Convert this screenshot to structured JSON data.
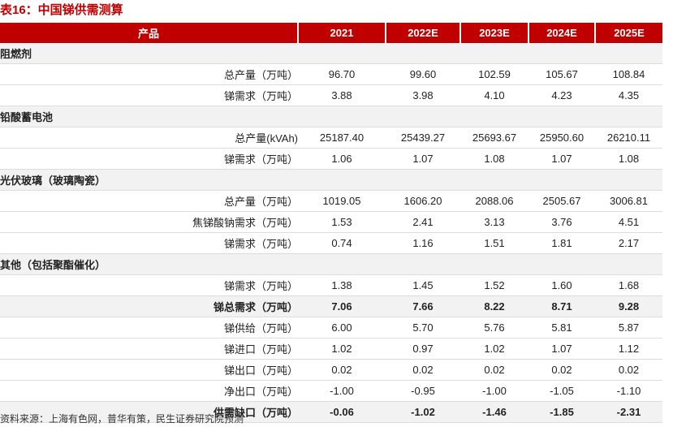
{
  "title": "表16：中国锑供需测算",
  "source": "资料来源：上海有色网，普华有策，民生证券研究院预测",
  "header": {
    "product": "产品",
    "years": [
      "2021",
      "2022E",
      "2023E",
      "2024E",
      "2025E"
    ]
  },
  "rows": [
    {
      "type": "section",
      "label": "阻燃剂",
      "values": []
    },
    {
      "type": "sub",
      "label": "总产量（万吨）",
      "values": [
        "96.70",
        "99.60",
        "102.59",
        "105.67",
        "108.84"
      ]
    },
    {
      "type": "sub",
      "label": "锑需求（万吨）",
      "values": [
        "3.88",
        "3.98",
        "4.10",
        "4.23",
        "4.35"
      ]
    },
    {
      "type": "section",
      "label": "铅酸蓄电池",
      "values": []
    },
    {
      "type": "sub",
      "label": "总产量(kVAh)",
      "values": [
        "25187.40",
        "25439.27",
        "25693.67",
        "25950.60",
        "26210.11"
      ]
    },
    {
      "type": "sub",
      "label": "锑需求（万吨）",
      "values": [
        "1.06",
        "1.07",
        "1.08",
        "1.07",
        "1.08"
      ]
    },
    {
      "type": "section",
      "label": "光伏玻璃（玻璃陶瓷）",
      "values": []
    },
    {
      "type": "sub",
      "label": "总产量（万吨）",
      "values": [
        "1019.05",
        "1606.20",
        "2088.06",
        "2505.67",
        "3006.81"
      ]
    },
    {
      "type": "sub",
      "label": "焦锑酸钠需求（万吨）",
      "values": [
        "1.53",
        "2.41",
        "3.13",
        "3.76",
        "4.51"
      ]
    },
    {
      "type": "sub",
      "label": "锑需求（万吨）",
      "values": [
        "0.74",
        "1.16",
        "1.51",
        "1.81",
        "2.17"
      ]
    },
    {
      "type": "section",
      "label": "其他（包括聚酯催化）",
      "values": []
    },
    {
      "type": "sub",
      "label": "锑需求（万吨）",
      "values": [
        "1.38",
        "1.45",
        "1.52",
        "1.60",
        "1.68"
      ]
    },
    {
      "type": "total",
      "label": "锑总需求（万吨）",
      "values": [
        "7.06",
        "7.66",
        "8.22",
        "8.71",
        "9.28"
      ]
    },
    {
      "type": "tsub",
      "label": "锑供给（万吨）",
      "values": [
        "6.00",
        "5.70",
        "5.76",
        "5.81",
        "5.87"
      ]
    },
    {
      "type": "tsub",
      "label": "锑进口（万吨）",
      "values": [
        "1.02",
        "0.97",
        "1.02",
        "1.07",
        "1.12"
      ]
    },
    {
      "type": "tsub",
      "label": "锑出口（万吨）",
      "values": [
        "0.02",
        "0.02",
        "0.02",
        "0.02",
        "0.02"
      ]
    },
    {
      "type": "tsub",
      "label": "净出口（万吨）",
      "values": [
        "-1.00",
        "-0.95",
        "-1.00",
        "-1.05",
        "-1.10"
      ]
    },
    {
      "type": "total",
      "label": "供需缺口（万吨）",
      "values": [
        "-0.06",
        "-1.02",
        "-1.46",
        "-1.85",
        "-2.31"
      ]
    }
  ]
}
